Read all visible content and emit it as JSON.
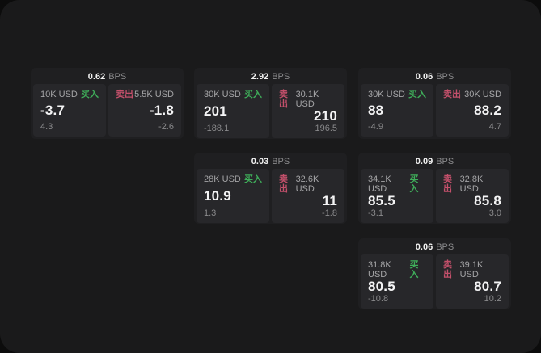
{
  "colors": {
    "buy_green": "#3fae5a",
    "sell_red": "#c4506b",
    "surface_background": "#1a1a1b",
    "card_background": "#1f1f21",
    "panel_background": "#27272a"
  },
  "cards": [
    {
      "spread": "0.62",
      "unit": "BPS",
      "buy": {
        "amount": "10K USD",
        "side": "买入",
        "price": "-3.7",
        "delta": "4.3"
      },
      "sell": {
        "side": "卖出",
        "amount": "5.5K USD",
        "price": "-1.8",
        "delta": "-2.6"
      }
    },
    {
      "spread": "2.92",
      "unit": "BPS",
      "buy": {
        "amount": "30K USD",
        "side": "买入",
        "price": "201",
        "delta": "-188.1"
      },
      "sell": {
        "side": "卖出",
        "amount": "30.1K USD",
        "price": "210",
        "delta": "196.5"
      }
    },
    {
      "spread": "0.03",
      "unit": "BPS",
      "buy": {
        "amount": "28K USD",
        "side": "买入",
        "price": "10.9",
        "delta": "1.3"
      },
      "sell": {
        "side": "卖出",
        "amount": "32.6K USD",
        "price": "11",
        "delta": "-1.8"
      }
    },
    {
      "spread": "0.06",
      "unit": "BPS",
      "buy": {
        "amount": "30K USD",
        "side": "买入",
        "price": "88",
        "delta": "-4.9"
      },
      "sell": {
        "side": "卖出",
        "amount": "30K USD",
        "price": "88.2",
        "delta": "4.7"
      }
    },
    {
      "spread": "0.09",
      "unit": "BPS",
      "buy": {
        "amount": "34.1K USD",
        "side": "买入",
        "price": "85.5",
        "delta": "-3.1"
      },
      "sell": {
        "side": "卖出",
        "amount": "32.8K USD",
        "price": "85.8",
        "delta": "3.0"
      }
    },
    {
      "spread": "0.06",
      "unit": "BPS",
      "buy": {
        "amount": "31.8K USD",
        "side": "买入",
        "price": "80.5",
        "delta": "-10.8"
      },
      "sell": {
        "side": "卖出",
        "amount": "39.1K USD",
        "price": "80.7",
        "delta": "10.2"
      }
    }
  ]
}
